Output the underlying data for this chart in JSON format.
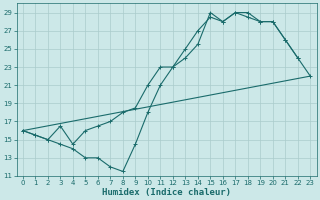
{
  "xlabel": "Humidex (Indice chaleur)",
  "bg_color": "#cce8e8",
  "grid_color": "#aacccc",
  "line_color": "#1a6b6b",
  "xlim": [
    -0.5,
    23.5
  ],
  "ylim": [
    11,
    30
  ],
  "yticks": [
    11,
    13,
    15,
    17,
    19,
    21,
    23,
    25,
    27,
    29
  ],
  "xticks": [
    0,
    1,
    2,
    3,
    4,
    5,
    6,
    7,
    8,
    9,
    10,
    11,
    12,
    13,
    14,
    15,
    16,
    17,
    18,
    19,
    20,
    21,
    22,
    23
  ],
  "line1_x": [
    0,
    1,
    2,
    3,
    4,
    5,
    6,
    7,
    8,
    9,
    10,
    11,
    12,
    13,
    14,
    15,
    16,
    17,
    18,
    19,
    20,
    21,
    22,
    23
  ],
  "line1_y": [
    16,
    15.5,
    15,
    14.5,
    14,
    13,
    13,
    12,
    11.5,
    14.5,
    18,
    21,
    23,
    24,
    25.5,
    29,
    28,
    29,
    29,
    28,
    28,
    26,
    24,
    22
  ],
  "line2_x": [
    0,
    1,
    2,
    3,
    4,
    5,
    6,
    7,
    8,
    9,
    10,
    11,
    12,
    13,
    14,
    15,
    16,
    17,
    18,
    19,
    20,
    21,
    22
  ],
  "line2_y": [
    16,
    15.5,
    15,
    16.5,
    14.5,
    16,
    16.5,
    17,
    18,
    18.5,
    21,
    23,
    23,
    25,
    27,
    28.5,
    28,
    29,
    28.5,
    28,
    28,
    26,
    24
  ],
  "line3_x": [
    0,
    23
  ],
  "line3_y": [
    16,
    22
  ]
}
